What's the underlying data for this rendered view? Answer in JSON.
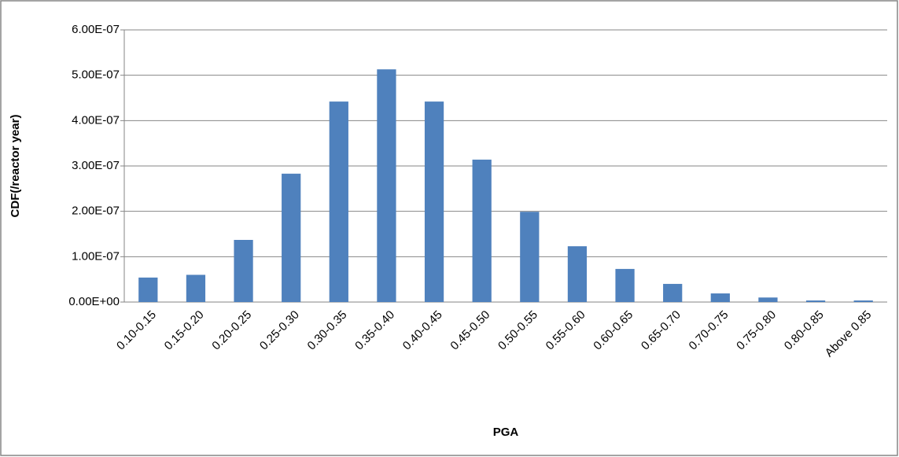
{
  "chart_data": {
    "type": "bar",
    "x_label": "PGA",
    "y_label": "CDF(/reactor year)",
    "categories": [
      "0.10-0.15",
      "0.15-0.20",
      "0.20-0.25",
      "0.25-0.30",
      "0.30-0.35",
      "0.35-0.40",
      "0.40-0.45",
      "0.45-0.50",
      "0.50-0.55",
      "0.55-0.60",
      "0.60-0.65",
      "0.65-0.70",
      "0.70-0.75",
      "0.75-0.80",
      "0.80-0.85",
      "Above 0.85"
    ],
    "values": [
      5.4e-08,
      6e-08,
      1.37e-07,
      2.83e-07,
      4.42e-07,
      5.13e-07,
      4.42e-07,
      3.14e-07,
      1.99e-07,
      1.23e-07,
      7.3e-08,
      4e-08,
      1.9e-08,
      1e-08,
      3.5e-09,
      3.5e-09
    ],
    "color": "#4f81bd",
    "ylim": [
      0,
      6e-07
    ],
    "yticks": [
      {
        "value": 0,
        "label": "0.00E+00"
      },
      {
        "value": 1e-07,
        "label": "1.00E-07"
      },
      {
        "value": 2e-07,
        "label": "2.00E-07"
      },
      {
        "value": 3e-07,
        "label": "3.00E-07"
      },
      {
        "value": 4e-07,
        "label": "4.00E-07"
      },
      {
        "value": 5e-07,
        "label": "5.00E-07"
      },
      {
        "value": 6e-07,
        "label": "6.00E-07"
      }
    ],
    "grid": true
  }
}
